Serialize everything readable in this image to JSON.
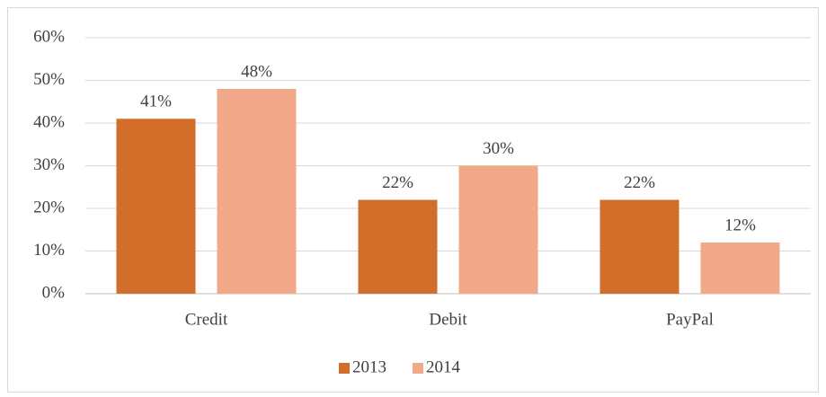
{
  "chart_data": {
    "type": "bar",
    "categories": [
      "Credit",
      "Debit",
      "PayPal"
    ],
    "series": [
      {
        "name": "2013",
        "color": "#d26d2a",
        "values": [
          41,
          22,
          22
        ],
        "value_labels": [
          "41%",
          "22%",
          "22%"
        ]
      },
      {
        "name": "2014",
        "color": "#f1a98a",
        "values": [
          48,
          30,
          12
        ],
        "value_labels": [
          "48%",
          "30%",
          "12%"
        ]
      }
    ],
    "ylim": [
      0,
      60
    ],
    "yticks": [
      {
        "value": 0,
        "label": "0%"
      },
      {
        "value": 10,
        "label": "10%"
      },
      {
        "value": 20,
        "label": "20%"
      },
      {
        "value": 30,
        "label": "30%"
      },
      {
        "value": 40,
        "label": "40%"
      },
      {
        "value": 50,
        "label": "50%"
      },
      {
        "value": 60,
        "label": "60%"
      }
    ],
    "grid": true,
    "legend": "bottom"
  }
}
